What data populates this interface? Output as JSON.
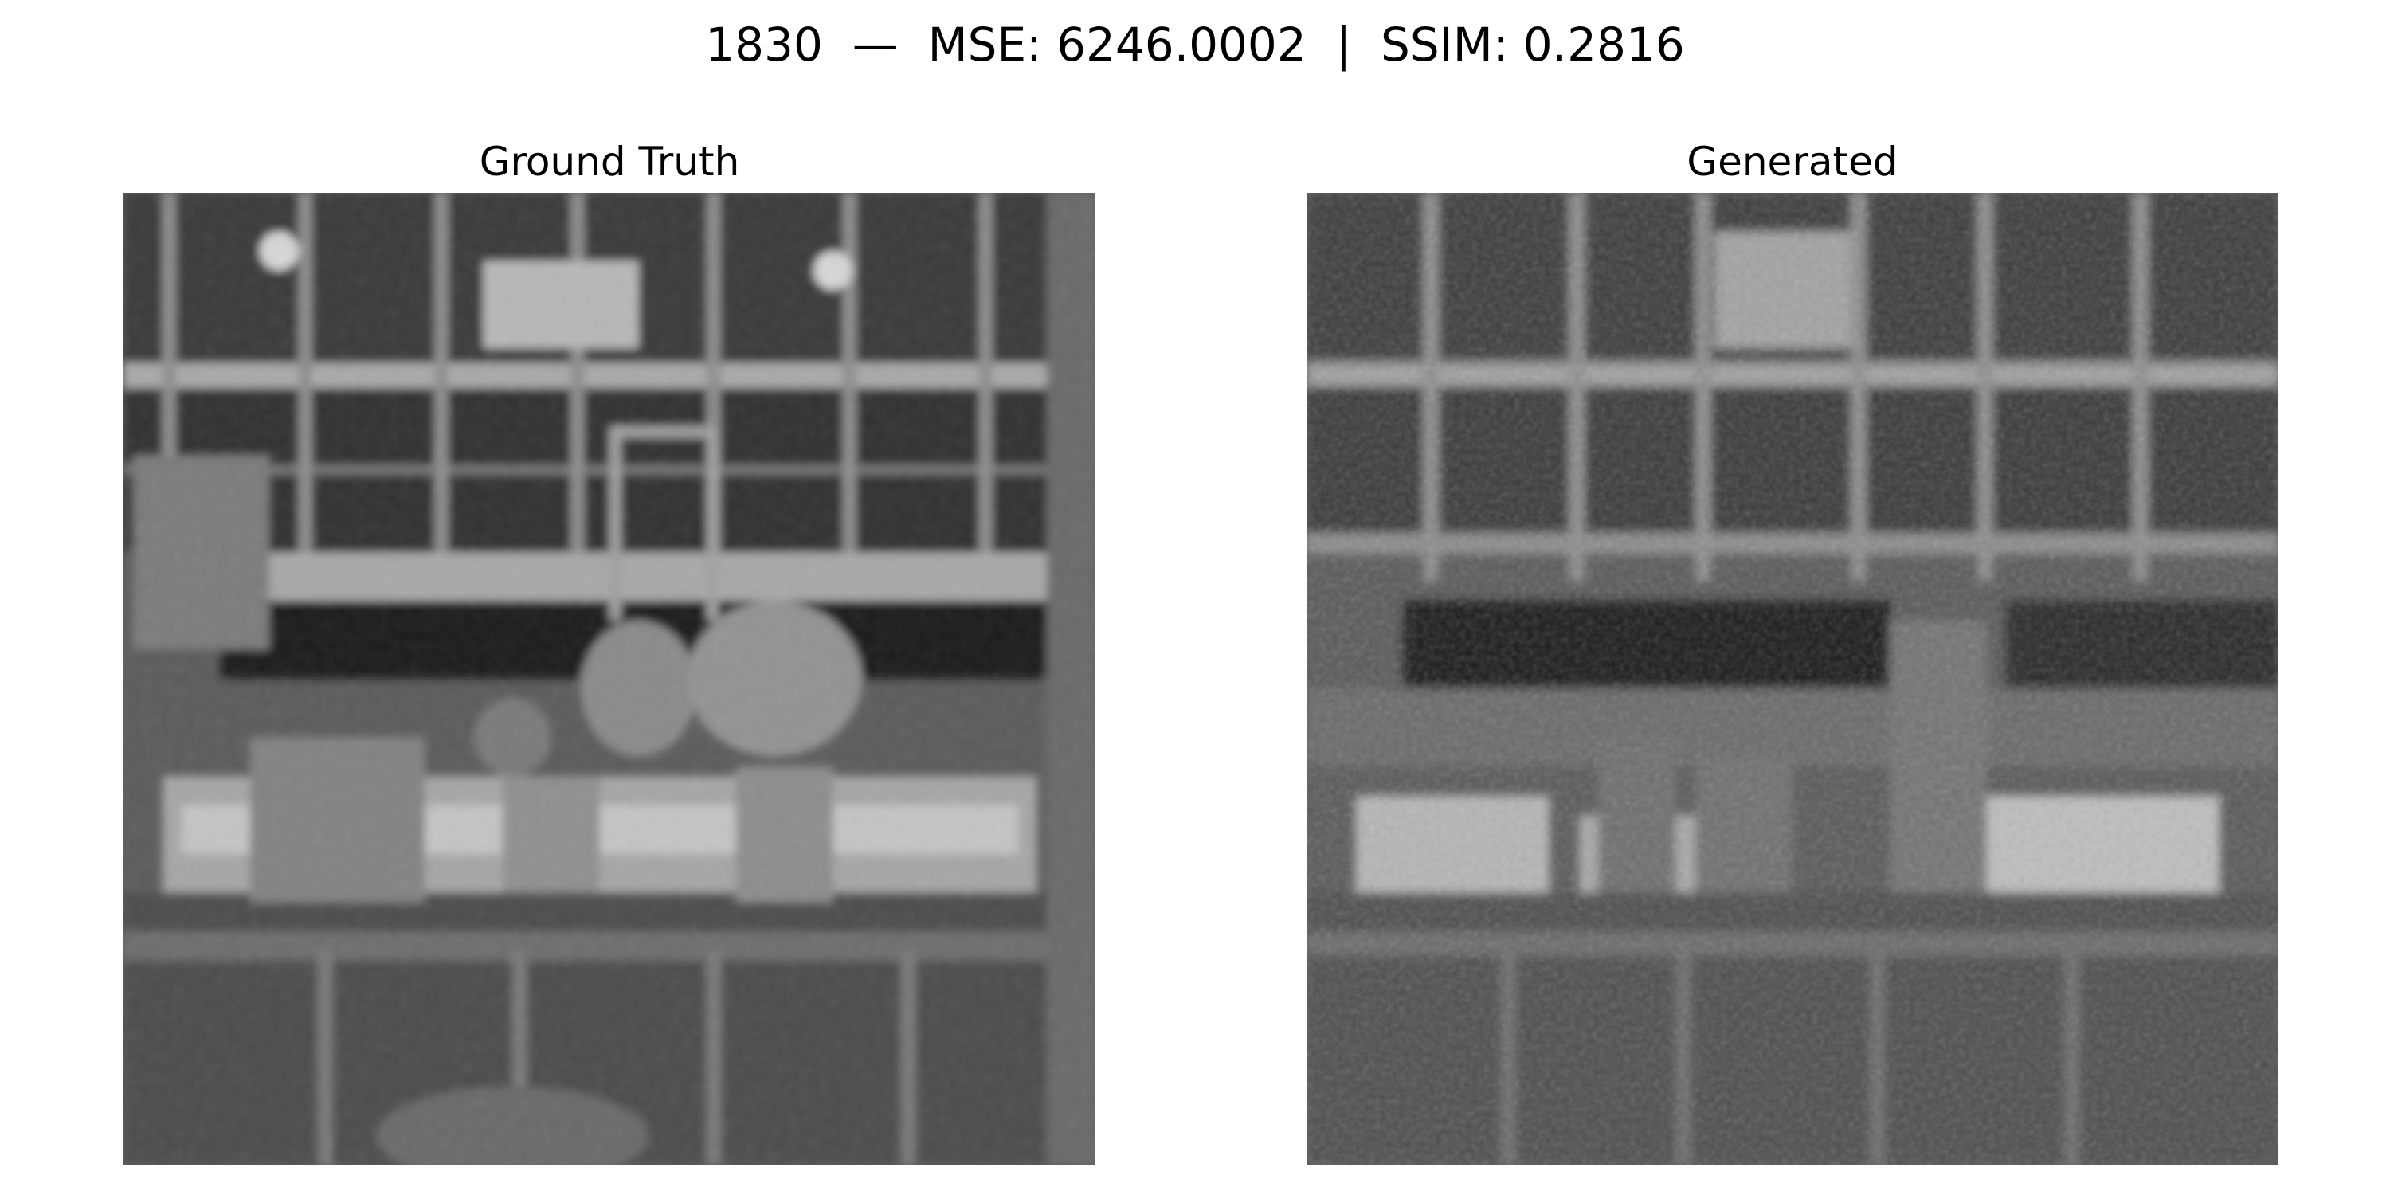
{
  "figure": {
    "title": "1830  —  MSE: 6246.0002  |  SSIM: 0.2816",
    "metrics": {
      "id": "1830",
      "mse": 6246.0002,
      "ssim": 0.2816
    }
  },
  "panels": [
    {
      "title": "Ground Truth",
      "image": "grayscale thermal-style photo of a greenhouse interior: window frame grid, hanging lamps, potted plants on a table"
    },
    {
      "title": "Generated",
      "image": "noisy grayscale reconstruction of the same greenhouse scene with a dark band across the middle"
    }
  ],
  "colors": {
    "background": "#ffffff",
    "text": "#000000"
  }
}
